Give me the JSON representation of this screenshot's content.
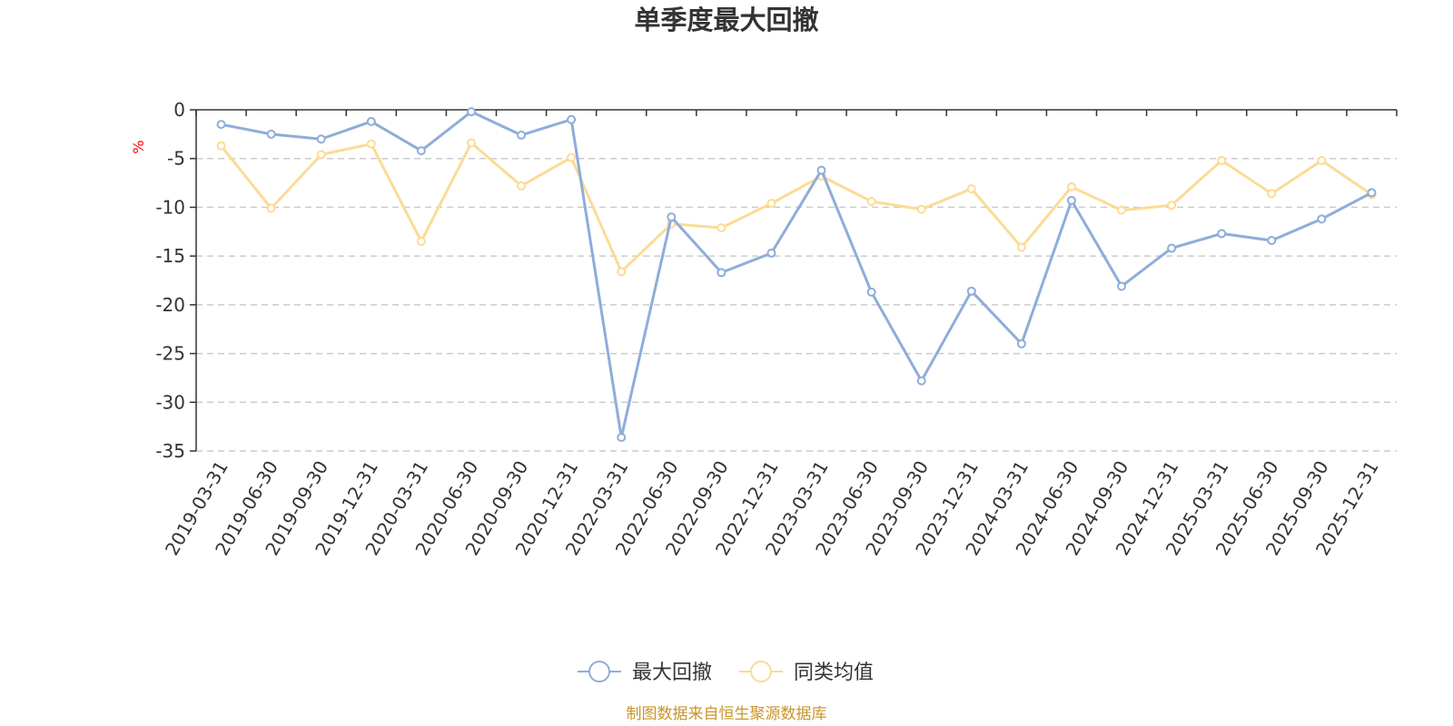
{
  "colors": {
    "series1": "#8eadd9",
    "series2": "#fcdb96",
    "axis": "#333333",
    "grid": "#cccccc",
    "ylabel": "#ff0000",
    "source": "#c8962a"
  },
  "chart_data": {
    "type": "line",
    "title": "单季度最大回撤",
    "xlabel": "",
    "ylabel": "%",
    "ylim": [
      -35,
      0
    ],
    "yticks": [
      0,
      -5,
      -10,
      -15,
      -20,
      -25,
      -30,
      -35
    ],
    "grid": true,
    "legend_position": "bottom-center",
    "categories": [
      "2019-03-31",
      "2019-06-30",
      "2019-09-30",
      "2019-12-31",
      "2020-03-31",
      "2020-06-30",
      "2020-09-30",
      "2020-12-31",
      "2022-03-31",
      "2022-06-30",
      "2022-09-30",
      "2022-12-31",
      "2023-03-31",
      "2023-06-30",
      "2023-09-30",
      "2023-12-31",
      "2024-03-31",
      "2024-06-30",
      "2024-09-30",
      "2024-12-31",
      "2025-03-31",
      "2025-06-30",
      "2025-09-30",
      "2025-12-31"
    ],
    "series": [
      {
        "name": "最大回撤",
        "values": [
          -1.5,
          -2.5,
          -3.0,
          -1.2,
          -4.2,
          -0.2,
          -2.6,
          -1.0,
          -33.6,
          -11.0,
          -16.7,
          -14.7,
          -6.2,
          -18.7,
          -27.8,
          -18.6,
          -24.0,
          -9.3,
          -18.1,
          -14.2,
          -12.7,
          -13.4,
          -11.2,
          -8.5
        ]
      },
      {
        "name": "同类均值",
        "values": [
          -3.7,
          -10.1,
          -4.6,
          -3.5,
          -13.5,
          -3.4,
          -7.8,
          -4.9,
          -16.6,
          -11.7,
          -12.1,
          -9.6,
          -6.8,
          -9.4,
          -10.2,
          -8.1,
          -14.1,
          -7.9,
          -10.3,
          -9.8,
          -5.2,
          -8.6,
          -5.2,
          -8.7
        ]
      }
    ],
    "source": "制图数据来自恒生聚源数据库"
  }
}
